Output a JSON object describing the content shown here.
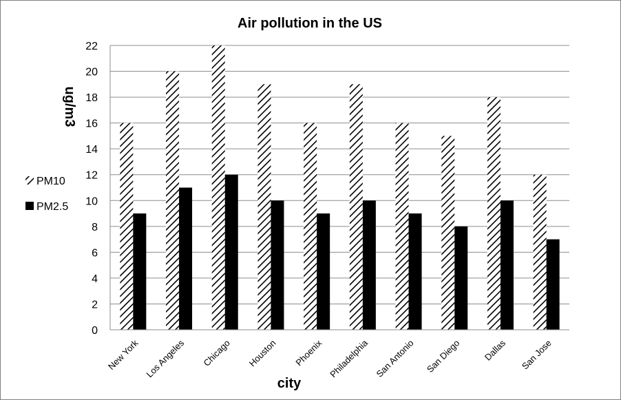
{
  "chart_data": {
    "type": "bar",
    "title": "Air pollution in the US",
    "xlabel": "city",
    "ylabel": "ug/m3",
    "categories": [
      "New York",
      "Los Angeles",
      "Chicago",
      "Houston",
      "Phoenix",
      "Philadelphia",
      "San Antonio",
      "San Diego",
      "Dallas",
      "San Jose"
    ],
    "series": [
      {
        "name": "PM10",
        "values": [
          16,
          20,
          22,
          19,
          16,
          19,
          16,
          15,
          18,
          12
        ],
        "fill": "hatched"
      },
      {
        "name": "PM2.5",
        "values": [
          9,
          11,
          12,
          10,
          9,
          10,
          9,
          8,
          10,
          7
        ],
        "fill": "#000000"
      }
    ],
    "ylim": [
      0,
      22
    ],
    "yticks": [
      0,
      2,
      4,
      6,
      8,
      10,
      12,
      14,
      16,
      18,
      20,
      22
    ],
    "grid": true,
    "legend_position": "left"
  }
}
